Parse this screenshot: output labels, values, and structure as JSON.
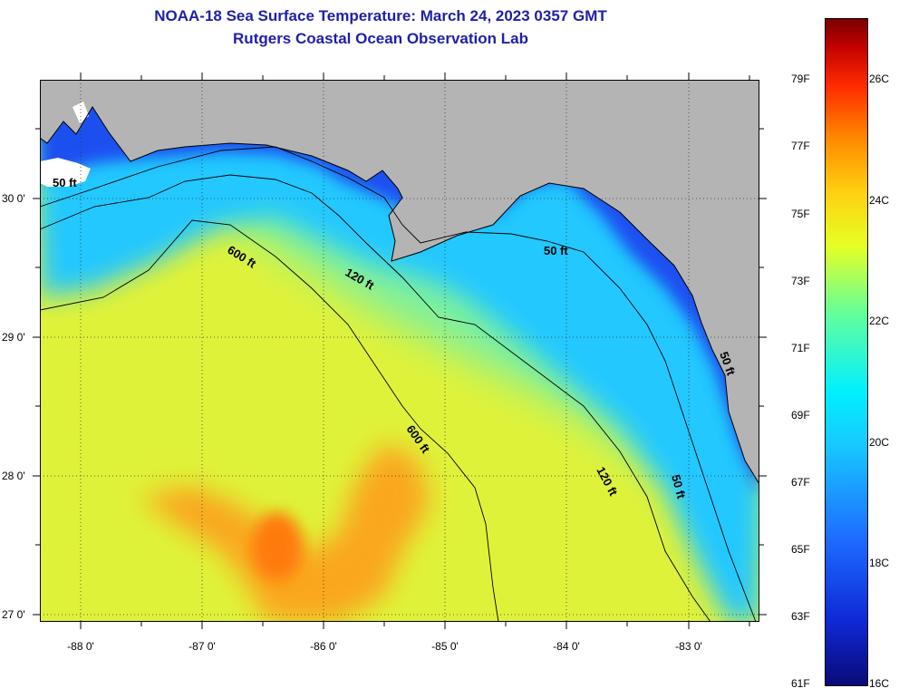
{
  "title": {
    "line1": "NOAA-18 Sea Surface Temperature:  March 24, 2023 0357 GMT",
    "line2": "Rutgers Coastal Ocean Observation Lab"
  },
  "map": {
    "lon_range": [
      -88.33,
      -82.42
    ],
    "lat_range": [
      26.92,
      30.84
    ],
    "lat_ticks": [
      "27 0'",
      "28 0'",
      "29 0'",
      "30 0'"
    ],
    "lon_ticks": [
      "-88 0'",
      "-87 0'",
      "-86 0'",
      "-85 0'",
      "-84 0'",
      "-83 0'"
    ],
    "contour_labels": [
      "600 ft",
      "120 ft",
      "50 ft",
      "600 ft",
      "120 ft",
      "50 ft",
      "50 ft",
      "50 ft"
    ],
    "colors": {
      "land": "#b4b4b4",
      "shelf_cold": "#1a50f0",
      "nearshore": "#22c8ff",
      "midshelf": "#7cf0a0",
      "offshore": "#dff23a",
      "warm_core": "#ff9a1a"
    }
  },
  "colorbar": {
    "fahrenheit": [
      "79F",
      "77F",
      "75F",
      "73F",
      "71F",
      "69F",
      "67F",
      "65F",
      "63F",
      "61F"
    ],
    "celsius": [
      "26C",
      "24C",
      "22C",
      "20C",
      "18C",
      "16C"
    ],
    "range_celsius": [
      16,
      27
    ],
    "colors": [
      "#0a0a78",
      "#0f2ad8",
      "#1e6cff",
      "#18c8ff",
      "#00f0ff",
      "#66ff99",
      "#e6ff24",
      "#ffd010",
      "#ff8a00",
      "#ff2a00",
      "#7a0000"
    ]
  }
}
